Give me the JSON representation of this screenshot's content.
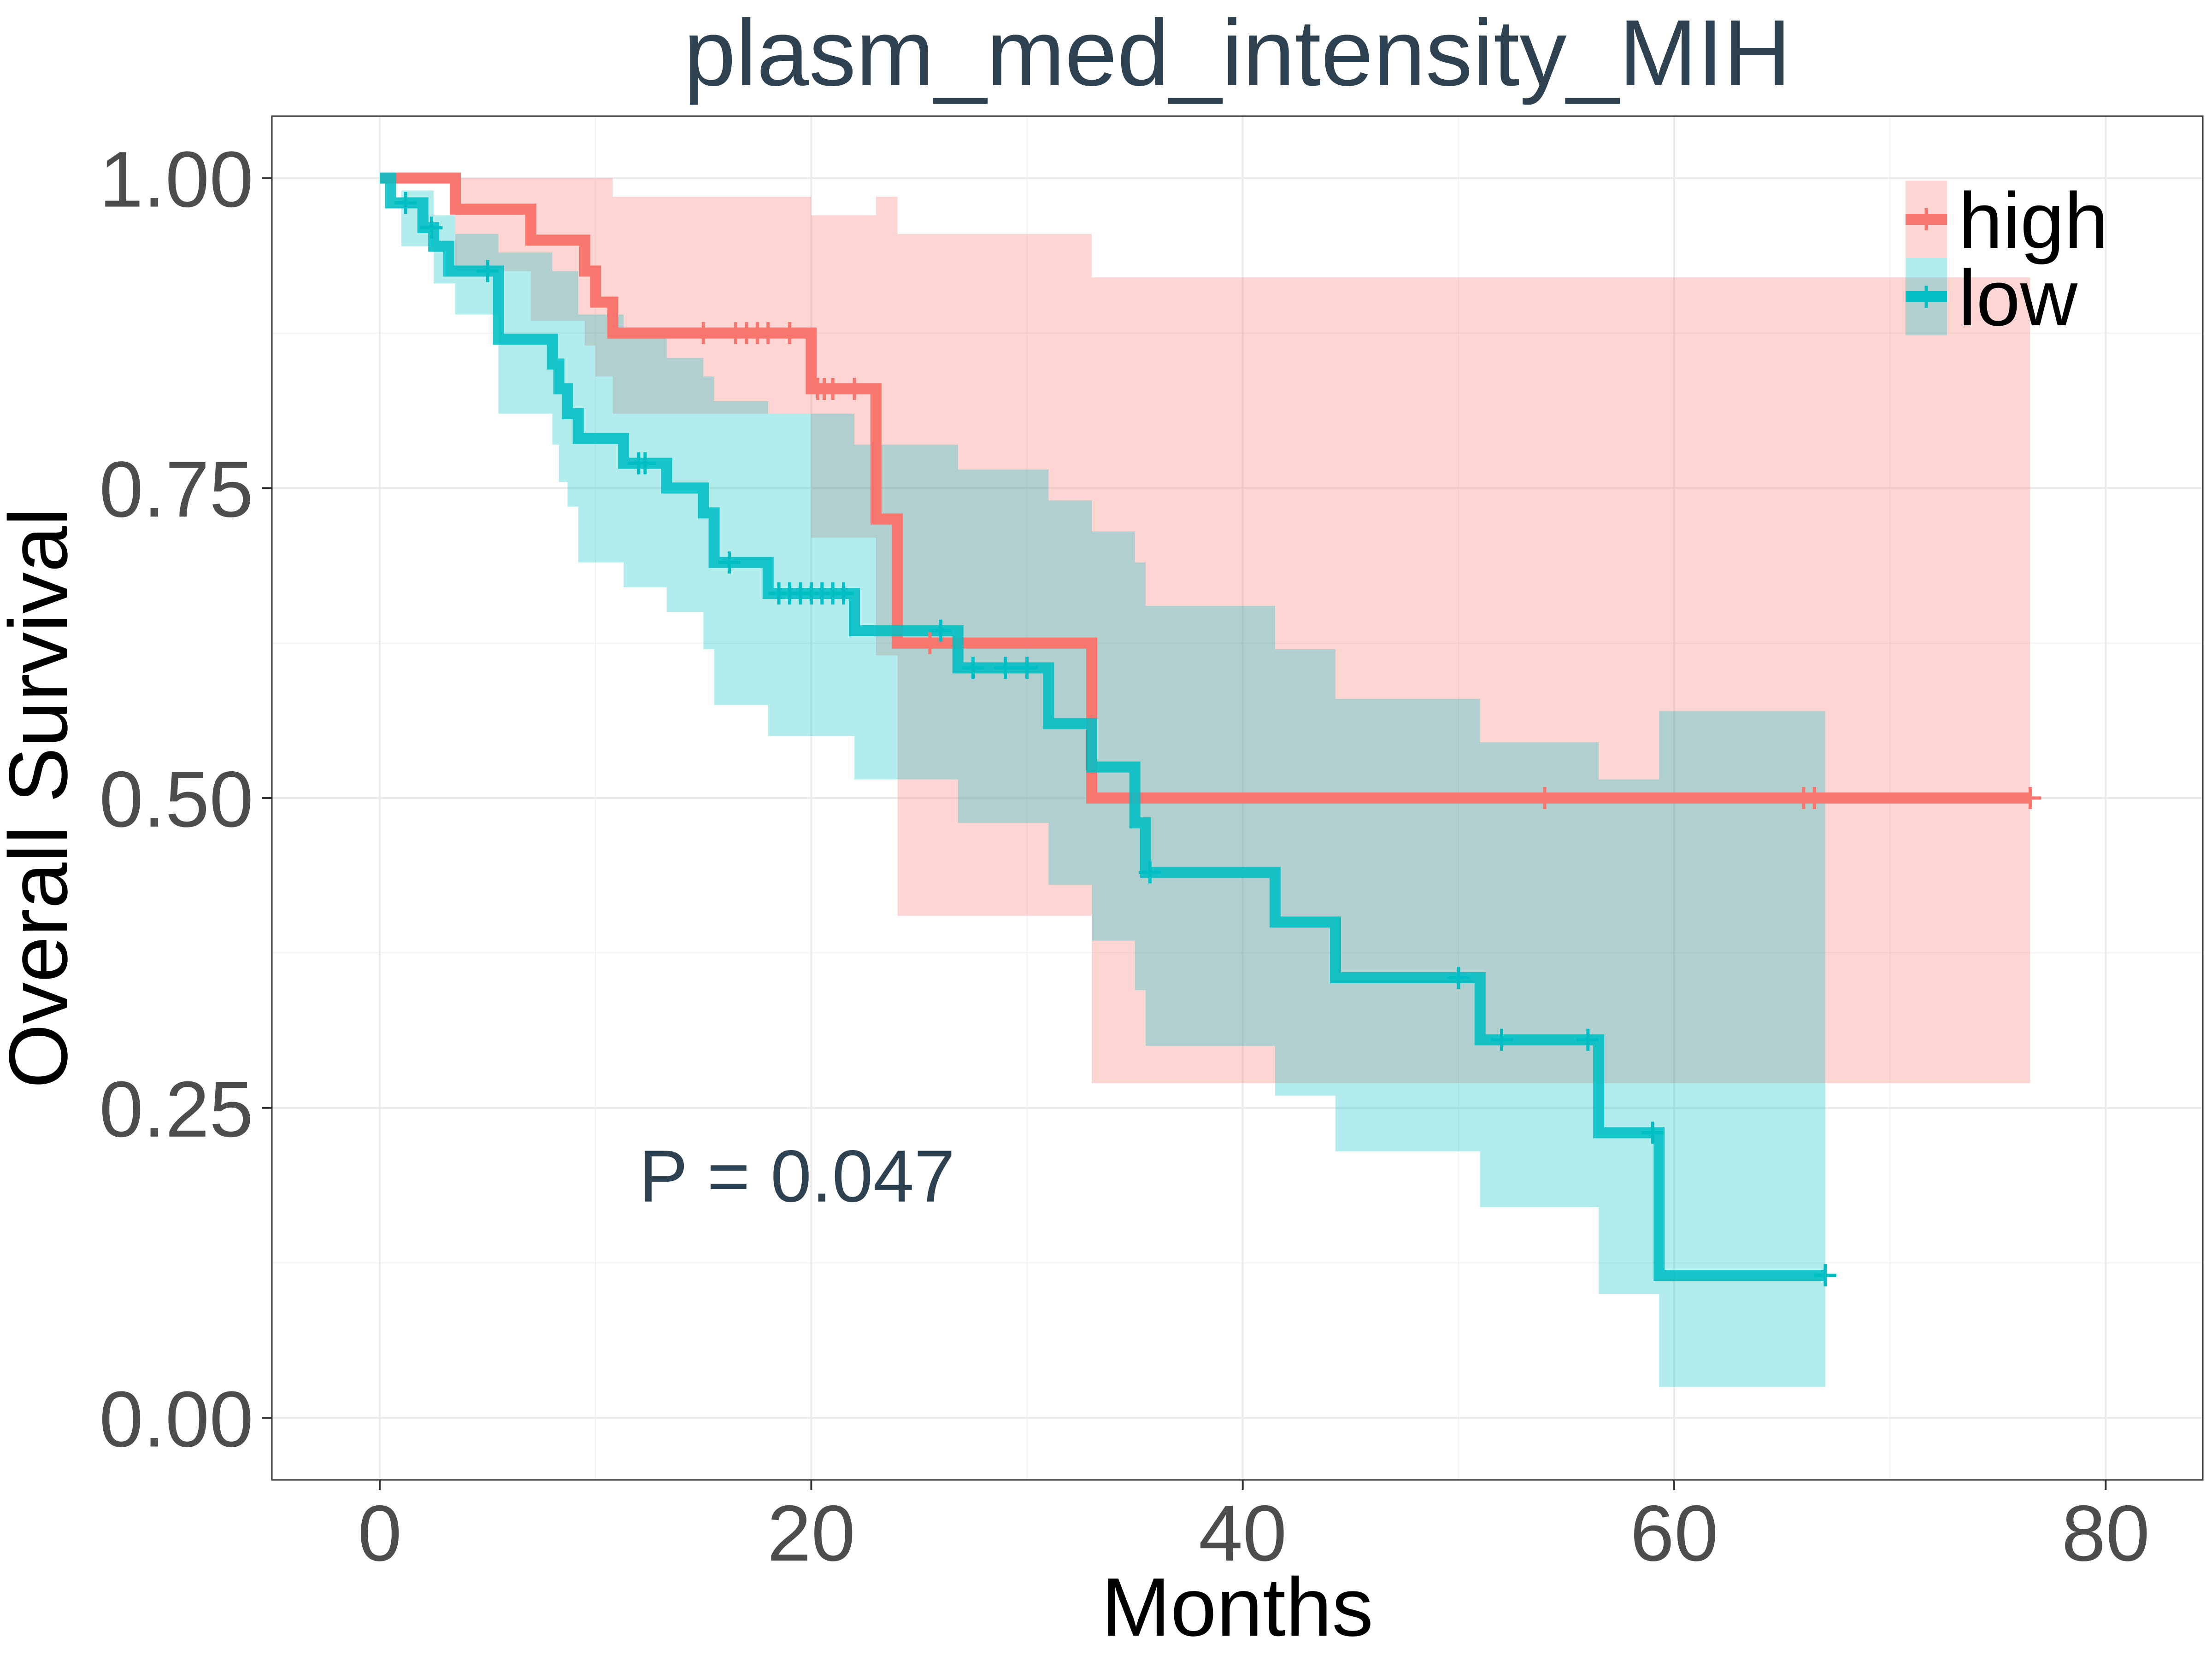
{
  "chart_data": {
    "type": "line",
    "subtype": "kaplan-meier",
    "title": "plasm_med_intensity_MIH",
    "xlabel": "Months",
    "ylabel": "Overall Survival",
    "xlim": [
      -5,
      84.5
    ],
    "ylim": [
      -0.05,
      1.05
    ],
    "x_ticks": [
      {
        "value": 0,
        "label": "0"
      },
      {
        "value": 20,
        "label": "20"
      },
      {
        "value": 40,
        "label": "40"
      },
      {
        "value": 60,
        "label": "60"
      },
      {
        "value": 80,
        "label": "80"
      }
    ],
    "y_ticks": [
      {
        "value": 0,
        "label": "0.00"
      },
      {
        "value": 0.25,
        "label": "0.25"
      },
      {
        "value": 0.5,
        "label": "0.50"
      },
      {
        "value": 0.75,
        "label": "0.75"
      },
      {
        "value": 1.0,
        "label": "1.00"
      }
    ],
    "grid": true,
    "legend_position": "top-right",
    "annotation": "P = 0.047",
    "annotation_pos": {
      "x": 12,
      "y": 0.195
    },
    "series": [
      {
        "name": "high",
        "color": "#F8766D",
        "band_color": "#F8766D",
        "steps": [
          [
            0,
            1.0
          ],
          [
            3.5,
            0.975
          ],
          [
            7,
            0.95
          ],
          [
            9.5,
            0.925
          ],
          [
            10,
            0.9
          ],
          [
            10.8,
            0.875
          ],
          [
            20,
            0.83
          ],
          [
            23,
            0.725
          ],
          [
            24,
            0.625
          ],
          [
            33,
            0.5
          ],
          [
            76.5,
            0.5
          ]
        ],
        "upper": [
          [
            0,
            1.0
          ],
          [
            3.5,
            1.0
          ],
          [
            10.8,
            0.985
          ],
          [
            20,
            0.97
          ],
          [
            23,
            0.985
          ],
          [
            24,
            0.955
          ],
          [
            33,
            0.92
          ],
          [
            76.5,
            0.92
          ]
        ],
        "lower": [
          [
            0,
            1.0
          ],
          [
            3.5,
            0.925
          ],
          [
            7,
            0.885
          ],
          [
            9.5,
            0.865
          ],
          [
            10,
            0.84
          ],
          [
            10.8,
            0.81
          ],
          [
            20,
            0.71
          ],
          [
            23,
            0.615
          ],
          [
            24,
            0.405
          ],
          [
            33,
            0.27
          ],
          [
            76.5,
            0.27
          ]
        ],
        "censor_x": [
          15,
          16.5,
          17,
          17.5,
          18,
          19,
          20.3,
          20.6,
          21,
          22,
          25.5,
          54,
          66,
          66.5,
          76.5
        ]
      },
      {
        "name": "low",
        "color": "#00BFC4",
        "band_color": "#00BFC4",
        "steps": [
          [
            0,
            1.0
          ],
          [
            0.5,
            0.98
          ],
          [
            2.0,
            0.96
          ],
          [
            2.5,
            0.945
          ],
          [
            3.2,
            0.925
          ],
          [
            5.5,
            0.87
          ],
          [
            8,
            0.85
          ],
          [
            8.3,
            0.83
          ],
          [
            8.7,
            0.81
          ],
          [
            9.2,
            0.79
          ],
          [
            11.3,
            0.77
          ],
          [
            13.3,
            0.75
          ],
          [
            15,
            0.73
          ],
          [
            15.5,
            0.69
          ],
          [
            18,
            0.665
          ],
          [
            22,
            0.635
          ],
          [
            26.8,
            0.605
          ],
          [
            31,
            0.56
          ],
          [
            33,
            0.525
          ],
          [
            35,
            0.48
          ],
          [
            35.5,
            0.44
          ],
          [
            41.5,
            0.4
          ],
          [
            44.3,
            0.355
          ],
          [
            51,
            0.305
          ],
          [
            56.5,
            0.23
          ],
          [
            59.3,
            0.115
          ],
          [
            67,
            0.115
          ]
        ],
        "upper": [
          [
            0,
            1.0
          ],
          [
            1,
            0.99
          ],
          [
            2.5,
            0.97
          ],
          [
            3.5,
            0.955
          ],
          [
            5.5,
            0.94
          ],
          [
            8,
            0.925
          ],
          [
            9.2,
            0.89
          ],
          [
            11.3,
            0.875
          ],
          [
            13.3,
            0.855
          ],
          [
            15,
            0.84
          ],
          [
            15.5,
            0.82
          ],
          [
            18,
            0.81
          ],
          [
            22,
            0.785
          ],
          [
            26.8,
            0.765
          ],
          [
            31,
            0.74
          ],
          [
            33,
            0.715
          ],
          [
            35,
            0.69
          ],
          [
            35.5,
            0.655
          ],
          [
            41.5,
            0.62
          ],
          [
            44.3,
            0.58
          ],
          [
            51,
            0.545
          ],
          [
            56.5,
            0.515
          ],
          [
            59.3,
            0.57
          ],
          [
            67,
            0.57
          ]
        ],
        "lower": [
          [
            0,
            1.0
          ],
          [
            1,
            0.945
          ],
          [
            2.5,
            0.915
          ],
          [
            3.5,
            0.89
          ],
          [
            5.5,
            0.81
          ],
          [
            8,
            0.785
          ],
          [
            8.3,
            0.755
          ],
          [
            8.7,
            0.735
          ],
          [
            9.2,
            0.69
          ],
          [
            11.3,
            0.67
          ],
          [
            13.3,
            0.65
          ],
          [
            15,
            0.62
          ],
          [
            15.5,
            0.575
          ],
          [
            18,
            0.55
          ],
          [
            22,
            0.515
          ],
          [
            26.8,
            0.48
          ],
          [
            31,
            0.43
          ],
          [
            33,
            0.385
          ],
          [
            35,
            0.345
          ],
          [
            35.5,
            0.3
          ],
          [
            41.5,
            0.26
          ],
          [
            44.3,
            0.215
          ],
          [
            51,
            0.17
          ],
          [
            56.5,
            0.1
          ],
          [
            59.3,
            0.025
          ],
          [
            67,
            0.025
          ]
        ],
        "censor_x": [
          1.2,
          2.4,
          5.0,
          12.0,
          12.3,
          16.2,
          18.5,
          19,
          19.5,
          20,
          20.5,
          21,
          21.5,
          26,
          27.5,
          29,
          30,
          35.7,
          50,
          52,
          56,
          59,
          67
        ]
      }
    ]
  }
}
